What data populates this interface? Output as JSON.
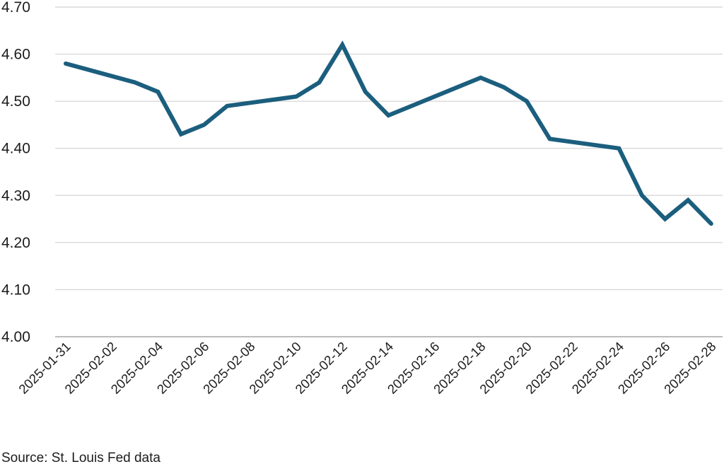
{
  "chart_data": {
    "type": "line",
    "x": [
      "2025-01-31",
      "2025-02-03",
      "2025-02-04",
      "2025-02-05",
      "2025-02-06",
      "2025-02-07",
      "2025-02-10",
      "2025-02-11",
      "2025-02-12",
      "2025-02-13",
      "2025-02-14",
      "2025-02-18",
      "2025-02-19",
      "2025-02-20",
      "2025-02-21",
      "2025-02-24",
      "2025-02-25",
      "2025-02-26",
      "2025-02-27",
      "2025-02-28"
    ],
    "series": [
      {
        "name": "",
        "values": [
          4.58,
          4.54,
          4.52,
          4.43,
          4.45,
          4.49,
          4.51,
          4.54,
          4.62,
          4.52,
          4.47,
          4.55,
          4.53,
          4.5,
          4.42,
          4.4,
          4.3,
          4.25,
          4.29,
          4.24
        ],
        "color": "#1b5e7e"
      }
    ],
    "x_tick_labels": [
      "2025-01-31",
      "2025-02-02",
      "2025-02-04",
      "2025-02-06",
      "2025-02-08",
      "2025-02-10",
      "2025-02-12",
      "2025-02-14",
      "2025-02-16",
      "2025-02-18",
      "2025-02-20",
      "2025-02-22",
      "2025-02-24",
      "2025-02-26",
      "2025-02-28"
    ],
    "y_tick_labels": [
      "4.00",
      "4.10",
      "4.20",
      "4.30",
      "4.40",
      "4.50",
      "4.60",
      "4.70"
    ],
    "ylim": [
      4.0,
      4.7
    ],
    "xlim": [
      "2025-01-31",
      "2025-02-28"
    ],
    "title": "",
    "xlabel": "",
    "ylabel": "",
    "grid": "horizontal",
    "legend": "none",
    "source": "Source: St. Louis Fed data",
    "colors": {
      "line": "#1b5e7e",
      "grid": "#d9d9d9",
      "axis": "#a6a6a6",
      "text": "#1c1c1c"
    }
  }
}
